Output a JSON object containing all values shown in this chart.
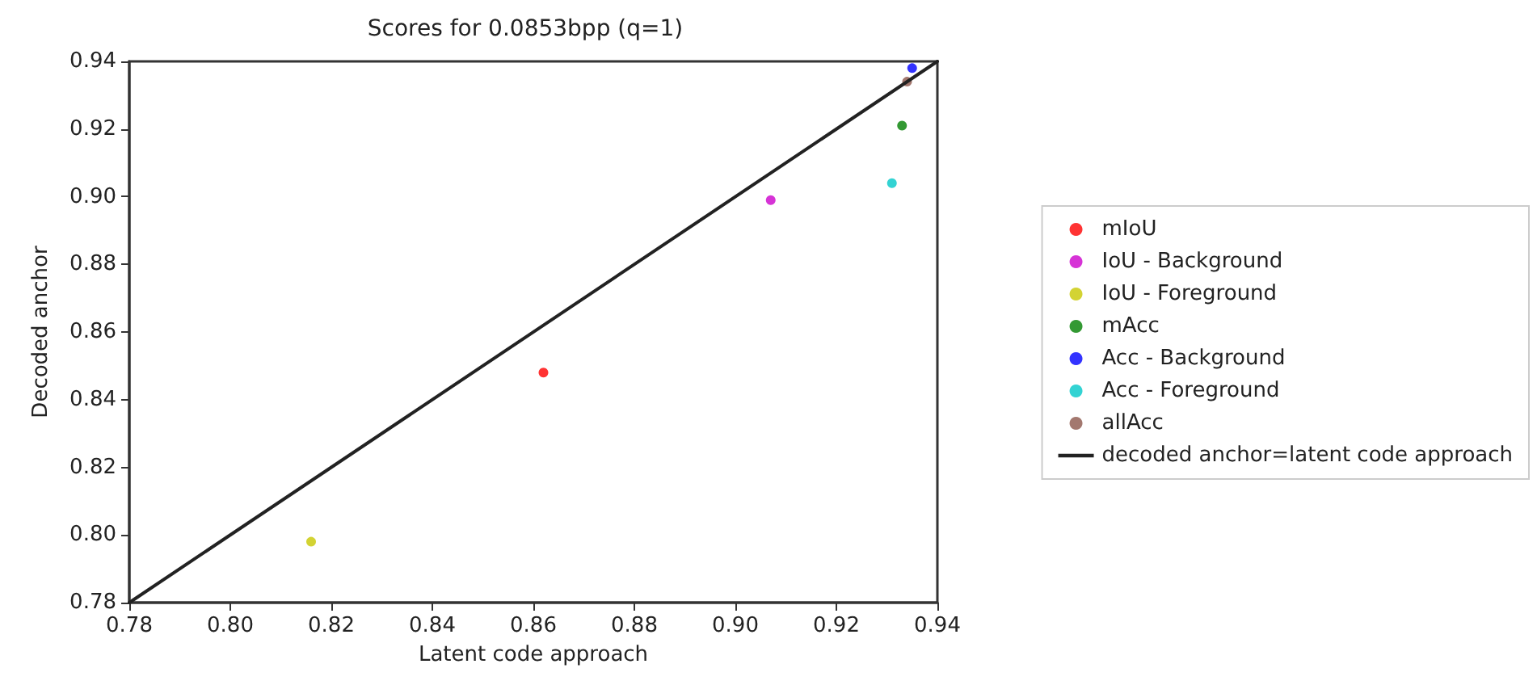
{
  "chart_data": {
    "type": "scatter",
    "title": "Scores for 0.0853bpp (q=1)",
    "xlabel": "Latent code approach",
    "ylabel": "Decoded anchor",
    "xlim": [
      0.78,
      0.94
    ],
    "xticks": [
      0.78,
      {
        "value": 0.8,
        "label": "0.80"
      },
      0.82,
      0.84,
      0.86,
      0.88,
      {
        "value": 0.9,
        "label": "0.90"
      },
      0.92,
      0.94
    ],
    "ylim": [
      0.78,
      0.94
    ],
    "yticks": [
      0.78,
      {
        "value": 0.8,
        "label": "0.80"
      },
      0.82,
      0.84,
      0.86,
      0.88,
      {
        "value": 0.9,
        "label": "0.90"
      },
      0.92,
      0.94
    ],
    "grid": false,
    "legend": "right",
    "marker": "circle",
    "series": [
      {
        "name": "mIoU",
        "color": "#ff0000",
        "x": [
          0.862
        ],
        "values": [
          0.848
        ]
      },
      {
        "name": "IoU - Background",
        "color": "#cc00cc",
        "x": [
          0.907
        ],
        "values": [
          0.899
        ]
      },
      {
        "name": "IoU - Foreground",
        "color": "#c8c800",
        "x": [
          0.816
        ],
        "values": [
          0.798
        ]
      },
      {
        "name": "mAcc",
        "color": "#008000",
        "x": [
          0.933
        ],
        "values": [
          0.921
        ]
      },
      {
        "name": "Acc - Background",
        "color": "#0000ff",
        "x": [
          0.935
        ],
        "values": [
          0.938
        ]
      },
      {
        "name": "Acc - Foreground",
        "color": "#00c8c8",
        "x": [
          0.931
        ],
        "values": [
          0.904
        ]
      },
      {
        "name": "allAcc",
        "color": "#8c564b",
        "x": [
          0.934
        ],
        "values": [
          0.934
        ]
      },
      {
        "name": "decoded anchor=latent code approach",
        "type": "line",
        "marker": "none",
        "color": "#222222",
        "line_style": "solid",
        "x": [
          0.78,
          0.94
        ],
        "values": [
          0.78,
          0.94
        ]
      }
    ]
  }
}
